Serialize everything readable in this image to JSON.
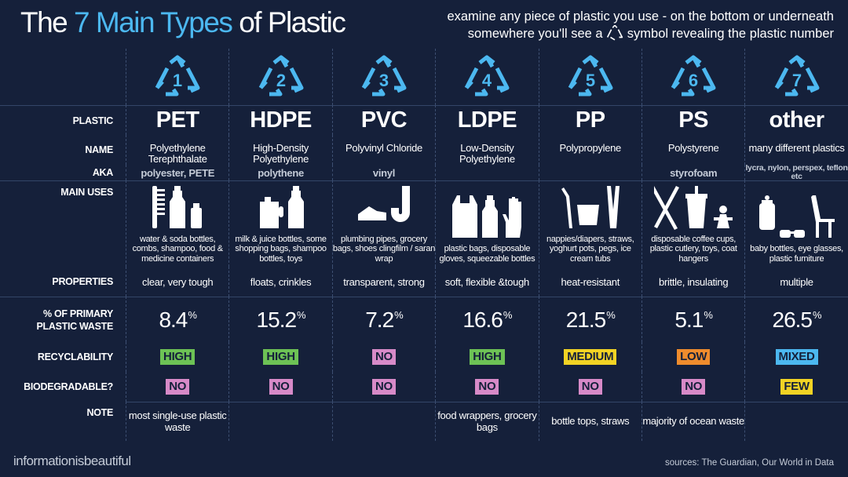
{
  "header": {
    "title_prefix": "The",
    "title_accent": "7 Main Types",
    "title_suffix": "of Plastic",
    "subtitle_line1": "examine any piece of plastic you use - on the bottom or underneath",
    "subtitle_line2_pre": "somewhere you'll see a",
    "subtitle_line2_post": "symbol revealing the plastic number"
  },
  "row_labels": {
    "plastic": "PLASTIC",
    "name": "NAME",
    "aka": "AKA",
    "main_uses": "MAIN USES",
    "properties": "PROPERTIES",
    "percent_line1": "% OF PRIMARY",
    "percent_line2": "PLASTIC WASTE",
    "recyclability": "RECYCLABILITY",
    "biodegradable": "BIODEGRADABLE?",
    "note": "NOTE"
  },
  "colors": {
    "background": "#15203a",
    "accent": "#4cb8f0",
    "high": "#6dc255",
    "no": "#d78ac8",
    "medium": "#f2d324",
    "low": "#ef8c2d",
    "mixed": "#4cb8f0",
    "few": "#f2d324"
  },
  "plastics": [
    {
      "number": "1",
      "abbr": "PET",
      "name": "Polyethylene Terephthalate",
      "aka": "polyester, PETE",
      "uses": "water & soda bottles, combs, shampoo, food & medicine containers",
      "icons": [
        "comb-icon",
        "bottle-icon",
        "small-bottle-icon"
      ],
      "properties": "clear, very tough",
      "percent": "8.4",
      "recyclability": "HIGH",
      "recyclability_color": "#6dc255",
      "biodegradable": "NO",
      "biodegradable_color": "#d78ac8",
      "note": "most single-use plastic waste"
    },
    {
      "number": "2",
      "abbr": "HDPE",
      "name": "High-Density Polyethylene",
      "aka": "polythene",
      "uses": "milk & juice bottles, some shopping bags, shampoo bottles, toys",
      "icons": [
        "jug-icon",
        "bottle-icon"
      ],
      "properties": "floats, crinkles",
      "percent": "15.2",
      "recyclability": "HIGH",
      "recyclability_color": "#6dc255",
      "biodegradable": "NO",
      "biodegradable_color": "#d78ac8",
      "note": ""
    },
    {
      "number": "3",
      "abbr": "PVC",
      "name": "Polyvinyl Chloride",
      "aka": "vinyl",
      "uses": "plumbing pipes, grocery bags, shoes clingfilm / saran wrap",
      "icons": [
        "shoe-icon",
        "pipe-icon"
      ],
      "properties": "transparent, strong",
      "percent": "7.2",
      "recyclability": "NO",
      "recyclability_color": "#d78ac8",
      "biodegradable": "NO",
      "biodegradable_color": "#d78ac8",
      "note": ""
    },
    {
      "number": "4",
      "abbr": "LDPE",
      "name": "Low-Density Polyethylene",
      "aka": "",
      "uses": "plastic bags, disposable gloves, squeezable bottles",
      "icons": [
        "bag-icon",
        "bottle-icon",
        "glove-icon"
      ],
      "properties": "soft, flexible &tough",
      "percent": "16.6",
      "recyclability": "HIGH",
      "recyclability_color": "#6dc255",
      "biodegradable": "NO",
      "biodegradable_color": "#d78ac8",
      "note": "food wrappers, grocery bags"
    },
    {
      "number": "5",
      "abbr": "PP",
      "name": "Polypropylene",
      "aka": "",
      "uses": "nappies/diapers, straws, yoghurt pots, pegs, ice cream tubs",
      "icons": [
        "straw-icon",
        "tub-icon",
        "peg-icon"
      ],
      "properties": "heat-resistant",
      "percent": "21.5",
      "recyclability": "MEDIUM",
      "recyclability_color": "#f2d324",
      "biodegradable": "NO",
      "biodegradable_color": "#d78ac8",
      "note": "bottle tops, straws"
    },
    {
      "number": "6",
      "abbr": "PS",
      "name": "Polystyrene",
      "aka": "styrofoam",
      "uses": "disposable coffee cups, plastic cutlery, toys, coat hangers",
      "icons": [
        "cutlery-icon",
        "cup-icon",
        "toy-icon"
      ],
      "properties": "brittle, insulating",
      "percent": "5.1",
      "recyclability": "LOW",
      "recyclability_color": "#ef8c2d",
      "biodegradable": "NO",
      "biodegradable_color": "#d78ac8",
      "note": "majority of ocean waste"
    },
    {
      "number": "7",
      "abbr": "other",
      "name": "many different plastics",
      "aka": "lycra, nylon, perspex, teflon etc",
      "uses": "baby bottles, eye glasses, plastic furniture",
      "icons": [
        "baby-bottle-icon",
        "glasses-icon",
        "chair-icon"
      ],
      "properties": "multiple",
      "percent": "26.5",
      "recyclability": "MIXED",
      "recyclability_color": "#4cb8f0",
      "biodegradable": "FEW",
      "biodegradable_color": "#f2d324",
      "note": ""
    }
  ],
  "footer": {
    "brand": "informationisbeautiful",
    "sources": "sources: The Guardian, Our World in Data"
  }
}
